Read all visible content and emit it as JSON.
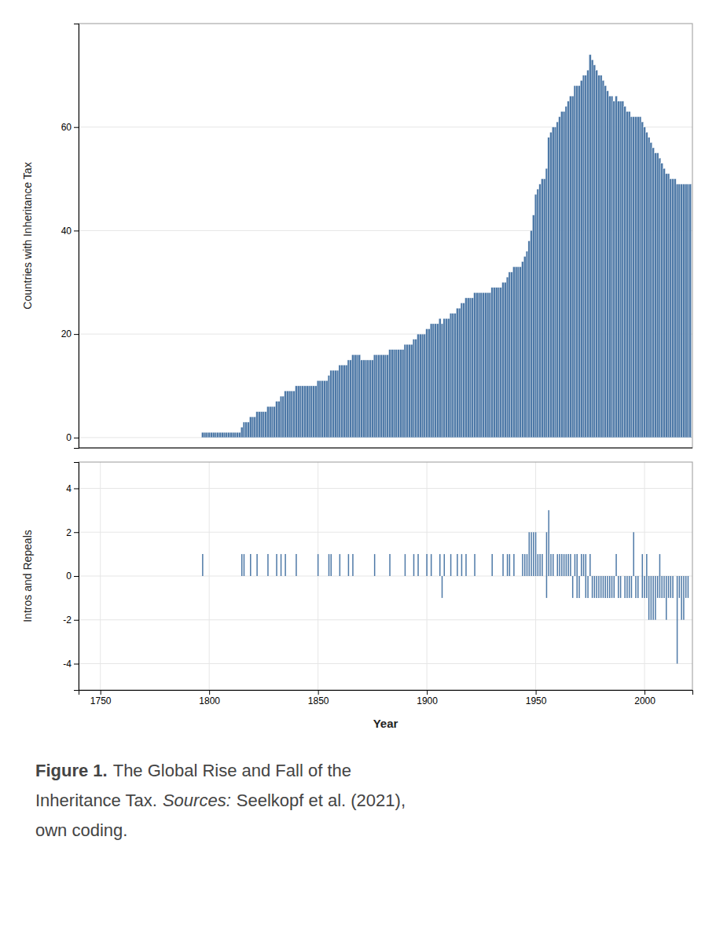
{
  "chart_data": [
    {
      "type": "bar",
      "y_label": "Countries with Inheritance Tax",
      "x": [
        1750,
        1751,
        1752,
        1753,
        1754,
        1755,
        1756,
        1757,
        1758,
        1759,
        1760,
        1761,
        1762,
        1763,
        1764,
        1765,
        1766,
        1767,
        1768,
        1769,
        1770,
        1771,
        1772,
        1773,
        1774,
        1775,
        1776,
        1777,
        1778,
        1779,
        1780,
        1781,
        1782,
        1783,
        1784,
        1785,
        1786,
        1787,
        1788,
        1789,
        1790,
        1791,
        1792,
        1793,
        1794,
        1795,
        1796,
        1797,
        1798,
        1799,
        1800,
        1801,
        1802,
        1803,
        1804,
        1805,
        1806,
        1807,
        1808,
        1809,
        1810,
        1811,
        1812,
        1813,
        1814,
        1815,
        1816,
        1817,
        1818,
        1819,
        1820,
        1821,
        1822,
        1823,
        1824,
        1825,
        1826,
        1827,
        1828,
        1829,
        1830,
        1831,
        1832,
        1833,
        1834,
        1835,
        1836,
        1837,
        1838,
        1839,
        1840,
        1841,
        1842,
        1843,
        1844,
        1845,
        1846,
        1847,
        1848,
        1849,
        1850,
        1851,
        1852,
        1853,
        1854,
        1855,
        1856,
        1857,
        1858,
        1859,
        1860,
        1861,
        1862,
        1863,
        1864,
        1865,
        1866,
        1867,
        1868,
        1869,
        1870,
        1871,
        1872,
        1873,
        1874,
        1875,
        1876,
        1877,
        1878,
        1879,
        1880,
        1881,
        1882,
        1883,
        1884,
        1885,
        1886,
        1887,
        1888,
        1889,
        1890,
        1891,
        1892,
        1893,
        1894,
        1895,
        1896,
        1897,
        1898,
        1899,
        1900,
        1901,
        1902,
        1903,
        1904,
        1905,
        1906,
        1907,
        1908,
        1909,
        1910,
        1911,
        1912,
        1913,
        1914,
        1915,
        1916,
        1917,
        1918,
        1919,
        1920,
        1921,
        1922,
        1923,
        1924,
        1925,
        1926,
        1927,
        1928,
        1929,
        1930,
        1931,
        1932,
        1933,
        1934,
        1935,
        1936,
        1937,
        1938,
        1939,
        1940,
        1941,
        1942,
        1943,
        1944,
        1945,
        1946,
        1947,
        1948,
        1949,
        1950,
        1951,
        1952,
        1953,
        1954,
        1955,
        1956,
        1957,
        1958,
        1959,
        1960,
        1961,
        1962,
        1963,
        1964,
        1965,
        1966,
        1967,
        1968,
        1969,
        1970,
        1971,
        1972,
        1973,
        1974,
        1975,
        1976,
        1977,
        1978,
        1979,
        1980,
        1981,
        1982,
        1983,
        1984,
        1985,
        1986,
        1987,
        1988,
        1989,
        1990,
        1991,
        1992,
        1993,
        1994,
        1995,
        1996,
        1997,
        1998,
        1999,
        2000,
        2001,
        2002,
        2003,
        2004,
        2005,
        2006,
        2007,
        2008,
        2009,
        2010,
        2011,
        2012,
        2013,
        2014,
        2015,
        2016,
        2017,
        2018,
        2019,
        2020,
        2021
      ],
      "values": [
        0,
        0,
        0,
        0,
        0,
        0,
        0,
        0,
        0,
        0,
        0,
        0,
        0,
        0,
        0,
        0,
        0,
        0,
        0,
        0,
        0,
        0,
        0,
        0,
        0,
        0,
        0,
        0,
        0,
        0,
        0,
        0,
        0,
        0,
        0,
        0,
        0,
        0,
        0,
        0,
        0,
        0,
        0,
        0,
        0,
        0,
        0,
        1,
        1,
        1,
        1,
        1,
        1,
        1,
        1,
        1,
        1,
        1,
        1,
        1,
        1,
        1,
        1,
        1,
        1,
        2,
        3,
        3,
        3,
        4,
        4,
        4,
        5,
        5,
        5,
        5,
        5,
        6,
        6,
        6,
        6,
        7,
        7,
        8,
        8,
        9,
        9,
        9,
        9,
        9,
        10,
        10,
        10,
        10,
        10,
        10,
        10,
        10,
        10,
        10,
        11,
        11,
        11,
        11,
        11,
        12,
        13,
        13,
        13,
        13,
        14,
        14,
        14,
        14,
        15,
        15,
        16,
        16,
        16,
        16,
        15,
        15,
        15,
        15,
        15,
        15,
        16,
        16,
        16,
        16,
        16,
        16,
        16,
        17,
        17,
        17,
        17,
        17,
        17,
        17,
        18,
        18,
        18,
        18,
        19,
        19,
        20,
        20,
        20,
        20,
        21,
        21,
        22,
        22,
        22,
        22,
        23,
        22,
        23,
        23,
        23,
        24,
        24,
        24,
        25,
        25,
        26,
        26,
        27,
        27,
        27,
        27,
        28,
        28,
        28,
        28,
        28,
        28,
        28,
        28,
        29,
        29,
        29,
        29,
        29,
        30,
        30,
        31,
        32,
        32,
        33,
        33,
        33,
        33,
        34,
        35,
        36,
        38,
        40,
        43,
        47,
        48,
        49,
        50,
        50,
        52,
        58,
        59,
        60,
        60,
        61,
        62,
        63,
        63,
        64,
        65,
        66,
        66,
        68,
        68,
        68,
        69,
        70,
        70,
        71,
        74,
        73,
        72,
        71,
        70,
        70,
        69,
        68,
        67,
        66,
        66,
        65,
        66,
        65,
        65,
        65,
        64,
        63,
        63,
        62,
        62,
        62,
        62,
        62,
        61,
        60,
        59,
        58,
        57,
        56,
        55,
        55,
        54,
        53,
        52,
        51,
        51,
        50,
        50,
        50,
        49,
        49,
        49,
        49,
        49,
        49,
        49
      ],
      "xlim": [
        1740,
        2022
      ],
      "ylim": [
        -2,
        80
      ],
      "yticks": [
        0,
        20,
        40,
        60
      ],
      "grid": true,
      "tick_labels": "y"
    },
    {
      "type": "vlines",
      "x_label": "Year",
      "y_label": "Intros and Repeals",
      "series": [
        {
          "x": [
            1797,
            1815,
            1816,
            1819,
            1822,
            1827,
            1831,
            1833,
            1835,
            1840,
            1850,
            1855,
            1856,
            1860,
            1864,
            1866,
            1876,
            1883,
            1890,
            1894,
            1896,
            1900,
            1902,
            1906,
            1908,
            1911,
            1914,
            1916,
            1918,
            1922,
            1930,
            1935,
            1937,
            1938,
            1940,
            1944,
            1945,
            1946,
            1947,
            1948,
            1949,
            1950,
            1951,
            1952,
            1953,
            1955,
            1956,
            1957,
            1958,
            1960,
            1961,
            1962,
            1963,
            1964,
            1965,
            1966,
            1968,
            1969,
            1971,
            1972,
            1973,
            1975,
            1987,
            1995,
            1999,
            2001,
            2007
          ],
          "values": [
            1,
            1,
            1,
            1,
            1,
            1,
            1,
            1,
            1,
            1,
            1,
            1,
            1,
            1,
            1,
            1,
            1,
            1,
            1,
            1,
            1,
            1,
            1,
            1,
            1,
            1,
            1,
            1,
            1,
            1,
            1,
            1,
            1,
            1,
            1,
            1,
            1,
            1,
            2,
            2,
            2,
            2,
            1,
            1,
            1,
            2,
            3,
            1,
            1,
            1,
            1,
            1,
            1,
            1,
            1,
            1,
            1,
            1,
            1,
            1,
            1,
            1,
            1,
            2,
            1,
            1,
            1
          ]
        },
        {
          "x": [
            1907,
            1955,
            1967,
            1969,
            1970,
            1973,
            1974,
            1976,
            1977,
            1978,
            1979,
            1980,
            1981,
            1982,
            1983,
            1984,
            1985,
            1986,
            1988,
            1989,
            1991,
            1992,
            1993,
            1994,
            1996,
            1997,
            1999,
            2000,
            2001,
            2002,
            2003,
            2004,
            2005,
            2006,
            2007,
            2008,
            2009,
            2010,
            2011,
            2012,
            2013,
            2015,
            2016,
            2017,
            2018,
            2019,
            2020
          ],
          "values": [
            -1,
            -1,
            -1,
            -1,
            -1,
            -1,
            -1,
            -1,
            -1,
            -1,
            -1,
            -1,
            -1,
            -1,
            -1,
            -1,
            -1,
            -1,
            -1,
            -1,
            -1,
            -1,
            -1,
            -1,
            -1,
            -1,
            -1,
            -1,
            -1,
            -2,
            -2,
            -2,
            -2,
            -1,
            -1,
            -1,
            -1,
            -2,
            -1,
            -1,
            -1,
            -4,
            -1,
            -2,
            -2,
            -1,
            -1
          ]
        }
      ],
      "xlim": [
        1740,
        2022
      ],
      "ylim": [
        -5.2,
        5.2
      ],
      "xticks": [
        1750,
        1800,
        1850,
        1900,
        1950,
        2000
      ],
      "yticks": [
        -4,
        -2,
        0,
        2,
        4
      ],
      "grid": true,
      "annotations": [
        "Figure 1.",
        "The Global Rise and Fall of the",
        "Inheritance Tax.",
        "Sources:",
        "Seelkopf et al. (2021),",
        "own coding."
      ]
    }
  ]
}
